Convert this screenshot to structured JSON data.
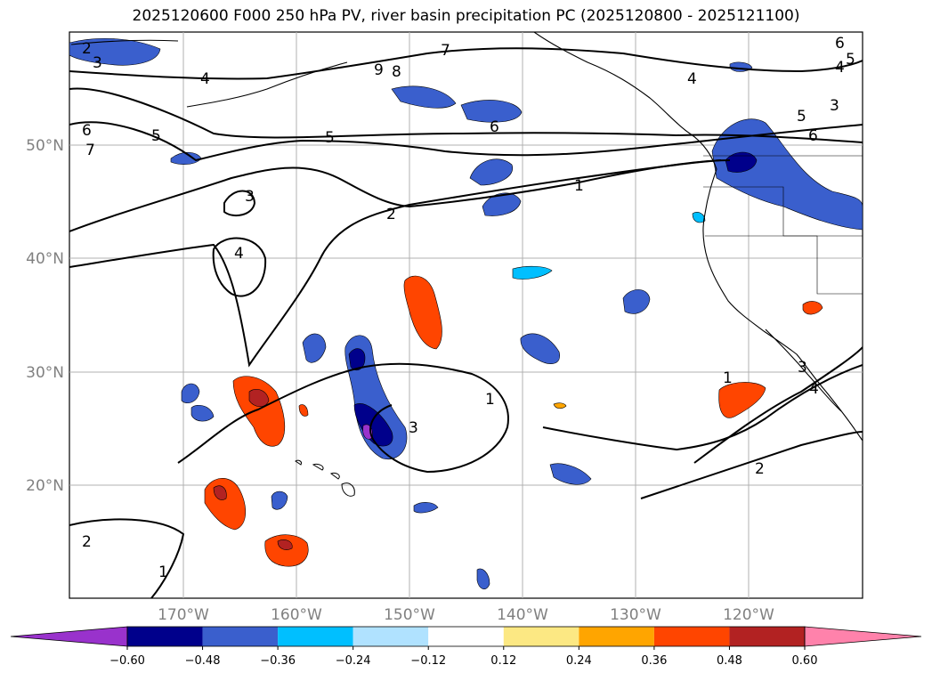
{
  "title": "2025120600 F000 250 hPa PV, river basin precipitation PC (2025120800 - 2025121100)",
  "axes": {
    "lat_labels": [
      "50°N",
      "40°N",
      "30°N",
      "20°N"
    ],
    "lon_labels": [
      "170°W",
      "160°W",
      "150°W",
      "140°W",
      "130°W",
      "120°W"
    ]
  },
  "colorbar": {
    "ticks": [
      "−0.60",
      "−0.48",
      "−0.36",
      "−0.24",
      "−0.12",
      "0.12",
      "0.24",
      "0.36",
      "0.48",
      "0.60"
    ],
    "colors": [
      "#9932cc",
      "#00008b",
      "#3a5fcd",
      "#00bfff",
      "#b0e2ff",
      "#ffffff",
      "#fce883",
      "#ffa500",
      "#ff4500",
      "#b22222",
      "#ff82ab"
    ]
  },
  "pv_contour_labels": {
    "l1": "1",
    "l2": "2",
    "l3": "3",
    "l4": "4",
    "l5": "5",
    "l6": "6",
    "l7": "7",
    "l8": "8",
    "l9": "9"
  },
  "colors": {
    "coast": "#000000",
    "grid": "#b0b0b0",
    "contour": "#000000",
    "axis_label": "#808080"
  }
}
